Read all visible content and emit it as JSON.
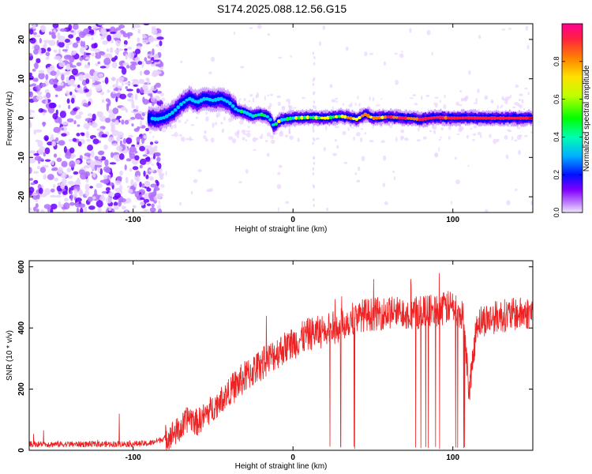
{
  "title": "S174.2025.088.12.56.G15",
  "chart_data": [
    {
      "type": "heatmap",
      "xlabel": "Height of straight line (km)",
      "ylabel": "Frequency (Hz)",
      "xlim": [
        -165,
        150
      ],
      "ylim": [
        -24,
        24
      ],
      "xticks": [
        -100,
        0,
        100
      ],
      "yticks": [
        -20,
        -10,
        0,
        10,
        20
      ],
      "colorbar": {
        "label": "Normalized spectral amplitude",
        "range": [
          0,
          1
        ],
        "ticks": [
          0.0,
          0.2,
          0.4,
          0.6,
          0.8
        ],
        "tick_labels": [
          "0.0",
          "0.2",
          "0.4",
          "0.6",
          "0.8"
        ],
        "colormap": [
          "#e8d4ff",
          "#b070ff",
          "#6a00ff",
          "#0000ff",
          "#00d0ff",
          "#00ff40",
          "#ffff00",
          "#ff8000",
          "#ff1a4d",
          "#ff00b0"
        ]
      },
      "noise_region_x": [
        -165,
        -90
      ],
      "signal_ridge": [
        {
          "x": -90,
          "y": 0.0
        },
        {
          "x": -85,
          "y": -0.3
        },
        {
          "x": -80,
          "y": 0.2
        },
        {
          "x": -75,
          "y": 1.5
        },
        {
          "x": -70,
          "y": 3.5
        },
        {
          "x": -65,
          "y": 5.0
        },
        {
          "x": -60,
          "y": 4.0
        },
        {
          "x": -55,
          "y": 5.0
        },
        {
          "x": -50,
          "y": 4.5
        },
        {
          "x": -45,
          "y": 5.0
        },
        {
          "x": -40,
          "y": 4.0
        },
        {
          "x": -35,
          "y": 2.0
        },
        {
          "x": -30,
          "y": 1.5
        },
        {
          "x": -25,
          "y": 0.5
        },
        {
          "x": -20,
          "y": 1.0
        },
        {
          "x": -15,
          "y": 0.2
        },
        {
          "x": -12,
          "y": -2.0
        },
        {
          "x": -8,
          "y": -0.5
        },
        {
          "x": 0,
          "y": 0.0
        },
        {
          "x": 10,
          "y": 0.2
        },
        {
          "x": 20,
          "y": 0.0
        },
        {
          "x": 30,
          "y": 0.5
        },
        {
          "x": 40,
          "y": -0.3
        },
        {
          "x": 45,
          "y": 1.0
        },
        {
          "x": 50,
          "y": 0.0
        },
        {
          "x": 60,
          "y": 0.3
        },
        {
          "x": 70,
          "y": 0.0
        },
        {
          "x": 80,
          "y": -0.3
        },
        {
          "x": 90,
          "y": 0.2
        },
        {
          "x": 100,
          "y": 0.0
        },
        {
          "x": 110,
          "y": 0.1
        },
        {
          "x": 120,
          "y": 0.0
        },
        {
          "x": 130,
          "y": 0.0
        },
        {
          "x": 140,
          "y": 0.0
        },
        {
          "x": 150,
          "y": 0.0
        }
      ]
    },
    {
      "type": "line",
      "xlabel": "Height of straight line (km)",
      "ylabel": "SNR (10 * v/v)",
      "xlim": [
        -165,
        150
      ],
      "ylim": [
        0,
        620
      ],
      "xticks": [
        -100,
        0,
        100
      ],
      "yticks": [
        0,
        200,
        400,
        600
      ],
      "color": "#ee2222",
      "envelope": [
        {
          "x": -165,
          "y": 20
        },
        {
          "x": -120,
          "y": 20
        },
        {
          "x": -90,
          "y": 22
        },
        {
          "x": -80,
          "y": 40
        },
        {
          "x": -70,
          "y": 70
        },
        {
          "x": -65,
          "y": 110
        },
        {
          "x": -60,
          "y": 90
        },
        {
          "x": -50,
          "y": 140
        },
        {
          "x": -40,
          "y": 190
        },
        {
          "x": -30,
          "y": 240
        },
        {
          "x": -20,
          "y": 280
        },
        {
          "x": -10,
          "y": 320
        },
        {
          "x": 0,
          "y": 350
        },
        {
          "x": 10,
          "y": 380
        },
        {
          "x": 20,
          "y": 390
        },
        {
          "x": 30,
          "y": 410
        },
        {
          "x": 40,
          "y": 440
        },
        {
          "x": 60,
          "y": 450
        },
        {
          "x": 80,
          "y": 450
        },
        {
          "x": 90,
          "y": 460
        },
        {
          "x": 100,
          "y": 470
        },
        {
          "x": 107,
          "y": 430
        },
        {
          "x": 110,
          "y": 200
        },
        {
          "x": 112,
          "y": 260
        },
        {
          "x": 115,
          "y": 420
        },
        {
          "x": 130,
          "y": 440
        },
        {
          "x": 150,
          "y": 450
        }
      ],
      "dropout_ranges": [
        [
          18,
          42
        ],
        [
          62,
          112
        ]
      ]
    }
  ]
}
